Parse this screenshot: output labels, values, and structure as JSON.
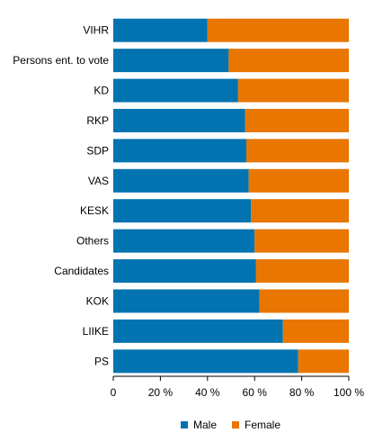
{
  "chart_data": {
    "type": "bar",
    "orientation": "horizontal",
    "stacked": true,
    "percent": true,
    "categories": [
      "VIHR",
      "Persons ent. to vote",
      "KD",
      "RKP",
      "SDP",
      "VAS",
      "KESK",
      "Others",
      "Candidates",
      "KOK",
      "LIIKE",
      "PS"
    ],
    "series": [
      {
        "name": "Male",
        "color": "#0073b0",
        "values": [
          40,
          49,
          53,
          56,
          56.5,
          57.5,
          58.5,
          60,
          60.5,
          62,
          72,
          78.5
        ]
      },
      {
        "name": "Female",
        "color": "#e87600",
        "values": [
          60,
          51,
          47,
          44,
          43.5,
          42.5,
          41.5,
          40,
          39.5,
          38,
          28,
          21.5
        ]
      }
    ],
    "xticks": [
      "0",
      "20 %",
      "40 %",
      "60 %",
      "80 %",
      "100 %"
    ],
    "xlim": [
      0,
      100
    ],
    "grid": false,
    "legend_position": "bottom"
  }
}
